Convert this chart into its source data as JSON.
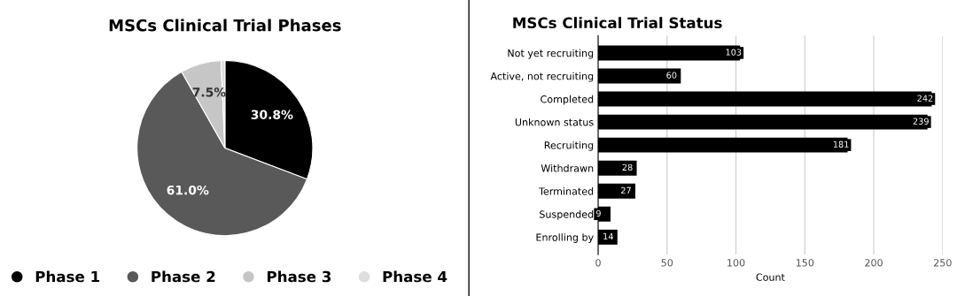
{
  "chart_data": [
    {
      "type": "pie",
      "title": "MSCs Clinical Trial Phases",
      "categories": [
        "Phase 1",
        "Phase 2",
        "Phase 3",
        "Phase 4"
      ],
      "values": [
        30.8,
        61.0,
        7.5,
        0.7
      ],
      "colors": [
        "#000000",
        "#595959",
        "#c6c6c6",
        "#dedede"
      ],
      "value_labels": [
        "30.8%",
        "61.0%",
        "7.5%",
        null
      ],
      "legend": "bottom"
    },
    {
      "type": "bar",
      "orientation": "horizontal",
      "title": "MSCs Clinical Trial Status",
      "xlabel": "Count",
      "categories": [
        "Not yet recruiting",
        "Active, not recruiting",
        "Completed",
        "Unknown status",
        "Recruiting",
        "Withdrawn",
        "Terminated",
        "Suspended",
        "Enrolling by"
      ],
      "values": [
        103,
        60,
        242,
        239,
        181,
        28,
        27,
        9,
        14
      ],
      "color": "#000000",
      "data_labels": true,
      "xlim": [
        0,
        250
      ],
      "xticks": [
        0,
        50,
        100,
        150,
        200,
        250
      ],
      "grid": "x"
    }
  ]
}
